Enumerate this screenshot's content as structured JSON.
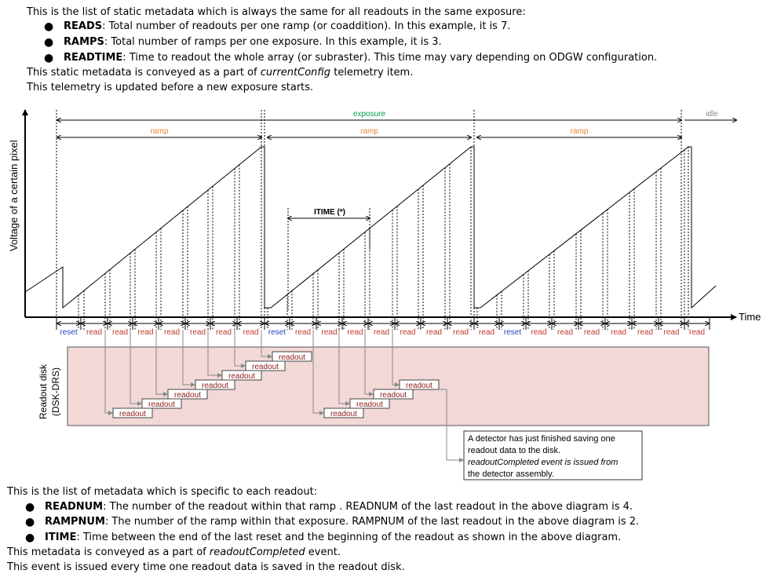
{
  "top": {
    "intro": "This is the list of static metadata which is always the same for all readouts in the same exposure:",
    "bullets": [
      {
        "term": "READS",
        "text": ": Total number of readouts per one ramp (or coaddition). In this example, it is 7."
      },
      {
        "term": "RAMPS",
        "text": ": Total number of ramps per one exposure. In this example, it is 3."
      },
      {
        "term": "READTIME",
        "text": ": Time to readout the whole array (or subraster). This time may vary depending on ODGW configuration."
      }
    ],
    "conveyed_pre": "This static metadata is conveyed as a part of ",
    "conveyed_em": "currentConfig",
    "conveyed_post": " telemetry item.",
    "updated": "This telemetry is updated before a new exposure starts."
  },
  "diagram": {
    "y_axis_label": "Voltage of a certain pixel",
    "x_axis_label": "Time",
    "exposure_label": "exposure",
    "idle_label": "idle",
    "ramp_label": "ramp",
    "itime_label": "ITIME (*)",
    "reset_label": "reset",
    "read_label": "read",
    "readout_label": "readout",
    "disk_label_1": "Readout disk",
    "disk_label_2": "(DSK-DRS)",
    "callout_lines": [
      "A detector has just finished saving one",
      "readout data to the disk.",
      "readoutCompleted event is issued from",
      "the detector assembly."
    ],
    "colors": {
      "exposure": "#00a04a",
      "ramp": "#e0853a",
      "reset": "#2a3fbf",
      "read": "#c0392b",
      "disk_fill": "#f2d9d7",
      "readout_text": "#8b1a1a"
    }
  },
  "bottom": {
    "intro": "This is the list of metadata which is specific to each readout:",
    "bullets": [
      {
        "term": "READNUM",
        "text": ": The number of the readout within that ramp . READNUM of the last readout in the above diagram is 4."
      },
      {
        "term": "RAMPNUM",
        "text": ": The number of the ramp within that exposure. RAMPNUM of the last readout in the above diagram is 2."
      },
      {
        "term": "ITIME",
        "text": ": Time between the end of the last reset and the beginning of the readout as shown in the above diagram."
      }
    ],
    "conveyed_pre": "This metadata is conveyed as a part of ",
    "conveyed_em": "readoutCompleted",
    "conveyed_post": " event.",
    "issued": "This event is issued every time one readout data is saved in the readout disk."
  }
}
